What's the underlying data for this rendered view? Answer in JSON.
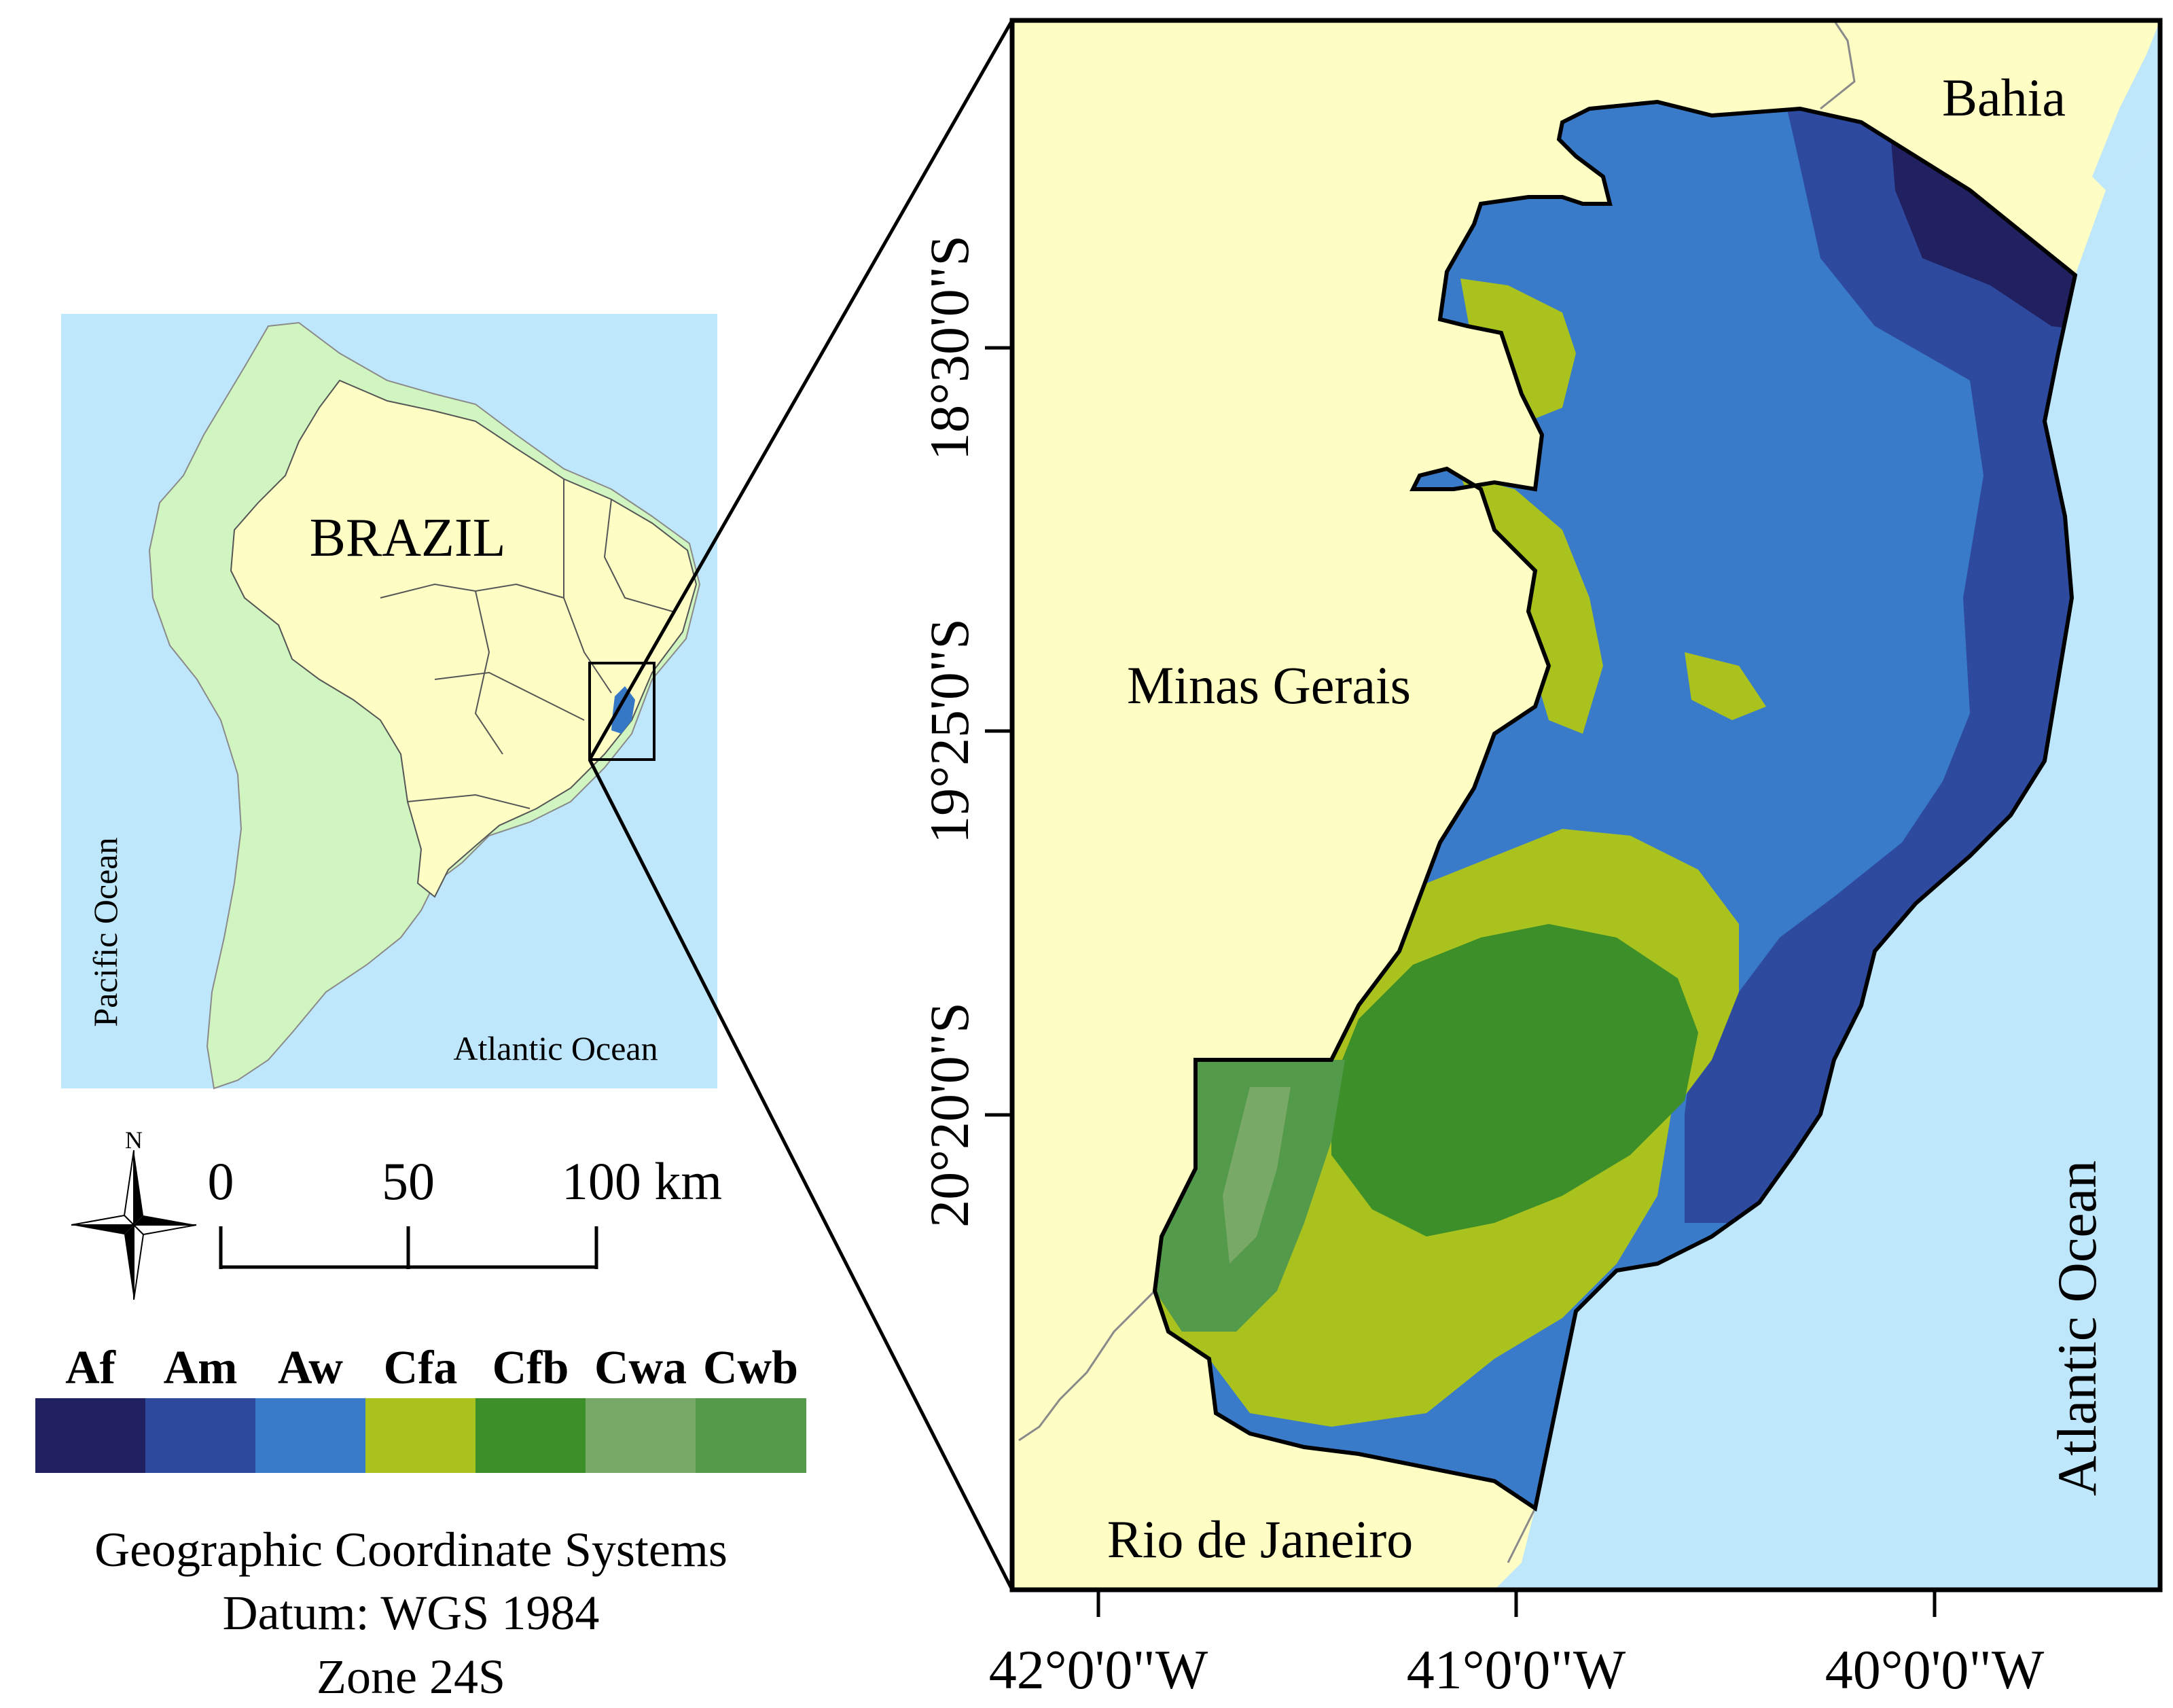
{
  "inset_map": {
    "country_label": "BRAZIL",
    "ocean_west": "Pacific Ocean",
    "ocean_east": "Atlantic Ocean",
    "colors": {
      "ocean": "#bfe7fb",
      "continent": "#d0f5c0",
      "brazil": "#fdfdc4",
      "study_area": "#3478c6"
    }
  },
  "main_map": {
    "neighbors": [
      "Bahia",
      "Minas Gerais",
      "Rio de Janeiro"
    ],
    "ocean": "Atlantic Ocean",
    "lat_ticks": [
      "18°30'0\"S",
      "19°25'0\"S",
      "20°20'0\"S"
    ],
    "lon_ticks": [
      "42°0'0\"W",
      "41°0'0\"W",
      "40°0'0\"W"
    ]
  },
  "north_arrow": {
    "label": "N",
    "icon": "compass-rose-icon"
  },
  "scale_bar": {
    "ticks": [
      "0",
      "50",
      "100 km"
    ]
  },
  "legend": {
    "classes": [
      {
        "code": "Af",
        "color": "#212060"
      },
      {
        "code": "Am",
        "color": "#2e4a9e"
      },
      {
        "code": "Aw",
        "color": "#3a7bc9"
      },
      {
        "code": "Cfa",
        "color": "#a9c21e"
      },
      {
        "code": "Cfb",
        "color": "#3d8f2a"
      },
      {
        "code": "Cwa",
        "color": "#79a966"
      },
      {
        "code": "Cwb",
        "color": "#549a4b"
      }
    ]
  },
  "crs_note": [
    "Geographic Coordinate Systems",
    "Datum: WGS 1984",
    "Zone 24S"
  ]
}
